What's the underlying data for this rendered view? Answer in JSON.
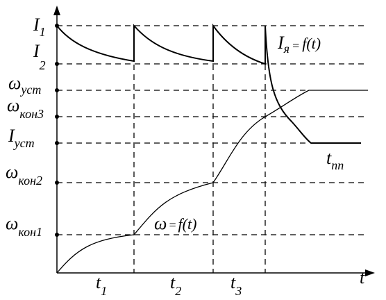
{
  "levels": [
    {
      "symbol": "I",
      "subscript": "1"
    },
    {
      "symbol": "I",
      "subscript": "2"
    },
    {
      "symbol": "ω",
      "subscript": "уст"
    },
    {
      "symbol": "ω",
      "subscript": "кон3"
    },
    {
      "symbol": "I",
      "subscript": "уст"
    },
    {
      "symbol": "ω",
      "subscript": "кон2"
    },
    {
      "symbol": "ω",
      "subscript": "кон1"
    }
  ],
  "current_curve_label": {
    "symbol": "I",
    "subscript": "я",
    "equals": "=",
    "function": "f(t)"
  },
  "speed_curve_label": {
    "symbol": "ω",
    "equals": "=",
    "function": "f(t)"
  },
  "time_axis_label": "t",
  "intervals": [
    {
      "symbol": "t",
      "subscript": "1"
    },
    {
      "symbol": "t",
      "subscript": "2"
    },
    {
      "symbol": "t",
      "subscript": "3"
    }
  ],
  "transient_label": {
    "symbol": "t",
    "subscript": "пп"
  }
}
